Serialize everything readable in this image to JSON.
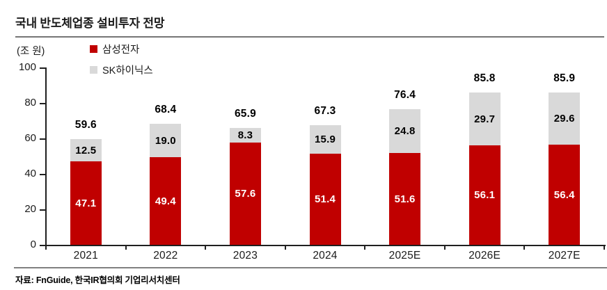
{
  "header": {
    "title": "국내 반도체업종 설비투자 전망"
  },
  "axis_unit": "(조 원)",
  "source": "자료: FnGuide, 한국IR협의회 기업리서치센터",
  "colors": {
    "samsung_red": "#C00000",
    "skhynix_gray": "#D9D9D9",
    "axis": "#1F1F1F",
    "rule_gray": "#808080"
  },
  "chart_data": {
    "type": "bar",
    "stacked": true,
    "title": "국내 반도체업종 설비투자 전망",
    "unit_label": "(조 원)",
    "categories": [
      "2021",
      "2022",
      "2023",
      "2024",
      "2025E",
      "2026E",
      "2027E"
    ],
    "series": [
      {
        "name": "삼성전자",
        "color": "#C00000",
        "label_color": "#ffffff",
        "values": [
          47.1,
          49.4,
          57.6,
          51.4,
          51.6,
          56.1,
          56.4
        ]
      },
      {
        "name": "SK하이닉스",
        "color": "#D9D9D9",
        "label_color": "#000000",
        "values": [
          12.5,
          19.0,
          8.3,
          15.9,
          24.8,
          29.7,
          29.6
        ]
      }
    ],
    "totals": [
      59.6,
      68.4,
      65.9,
      67.3,
      76.4,
      85.8,
      85.9
    ],
    "y_ticks": [
      0,
      20,
      40,
      60,
      80,
      100
    ],
    "ylim": [
      0,
      100
    ],
    "grid": false,
    "legend_position": "top-left-inside",
    "xlabel": "",
    "ylabel": "(조 원)"
  }
}
